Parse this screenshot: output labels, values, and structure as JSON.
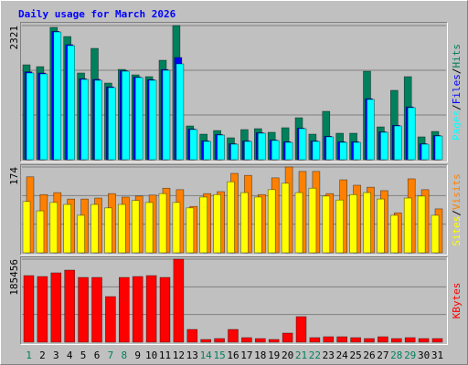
{
  "chart_data": [
    {
      "type": "bar",
      "title": "Daily usage for March 2026",
      "title_color": "#0000ff",
      "legend_separator": "/",
      "ylim": [
        0,
        2321
      ],
      "yticks": [
        2321
      ],
      "grid": true,
      "series": [
        {
          "name": "Hits",
          "color": "#00805c",
          "values": [
            1642,
            1610,
            2290,
            2131,
            1500,
            1926,
            1326,
            1563,
            1468,
            1437,
            1721,
            2321,
            584,
            442,
            505,
            379,
            521,
            537,
            474,
            553,
            726,
            442,
            837,
            458,
            458,
            1531,
            568,
            1200,
            1437,
            395,
            489
          ]
        },
        {
          "name": "Files",
          "color": "#0000ff",
          "values": [
            1520,
            1500,
            2220,
            1990,
            1400,
            1390,
            1260,
            1540,
            1430,
            1385,
            1560,
            1768,
            530,
            325,
            435,
            276,
            325,
            466,
            340,
            310,
            545,
            325,
            405,
            310,
            310,
            1055,
            482,
            595,
            912,
            276,
            418
          ]
        },
        {
          "name": "Pages",
          "color": "#00ffff",
          "values": [
            1500,
            1484,
            2210,
            1974,
            1389,
            1374,
            1247,
            1531,
            1421,
            1374,
            1547,
            1658,
            521,
            316,
            426,
            268,
            316,
            458,
            332,
            300,
            537,
            316,
            395,
            300,
            300,
            1042,
            474,
            584,
            900,
            268,
            410
          ]
        }
      ]
    },
    {
      "type": "bar",
      "legend_separator": "/",
      "ylim": [
        0,
        174
      ],
      "yticks": [
        174
      ],
      "grid": true,
      "series": [
        {
          "name": "Visits",
          "color": "#ff8000",
          "values": [
            154,
            118,
            122,
            109,
            109,
            111,
            120,
            113,
            115,
            117,
            131,
            128,
            94,
            120,
            124,
            161,
            157,
            118,
            152,
            174,
            165,
            165,
            120,
            148,
            137,
            133,
            126,
            81,
            150,
            128,
            89
          ]
        },
        {
          "name": "Sites",
          "color": "#ffff00",
          "values": [
            104,
            85,
            102,
            98,
            76,
            98,
            91,
            98,
            106,
            102,
            120,
            102,
            91,
            113,
            118,
            144,
            122,
            113,
            128,
            141,
            122,
            131,
            115,
            107,
            118,
            122,
            109,
            76,
            111,
            115,
            76
          ]
        }
      ]
    },
    {
      "type": "bar",
      "ylim": [
        0,
        185456
      ],
      "yticks": [
        185456
      ],
      "grid": true,
      "categories": [
        "1",
        "2",
        "3",
        "4",
        "5",
        "6",
        "7",
        "8",
        "9",
        "10",
        "11",
        "12",
        "13",
        "14",
        "15",
        "16",
        "17",
        "18",
        "19",
        "20",
        "21",
        "22",
        "23",
        "24",
        "25",
        "26",
        "27",
        "28",
        "29",
        "30",
        "31"
      ],
      "x_label_colors": [
        "#00805c",
        "#000000",
        "#000000",
        "#000000",
        "#000000",
        "#000000",
        "#00805c",
        "#00805c",
        "#000000",
        "#000000",
        "#000000",
        "#000000",
        "#000000",
        "#00805c",
        "#00805c",
        "#000000",
        "#000000",
        "#000000",
        "#000000",
        "#000000",
        "#00805c",
        "#00805c",
        "#000000",
        "#000000",
        "#000000",
        "#000000",
        "#000000",
        "#00805c",
        "#00805c",
        "#000000",
        "#000000"
      ],
      "series": [
        {
          "name": "KBytes",
          "color": "#ff0000",
          "values": [
            148770,
            146731,
            154886,
            161000,
            144693,
            144693,
            101900,
            144693,
            146731,
            148770,
            144693,
            185456,
            28532,
            6114,
            8152,
            28532,
            10190,
            8152,
            6114,
            20380,
            57063,
            10190,
            12228,
            12228,
            10190,
            8152,
            12228,
            8152,
            10190,
            8152,
            8152
          ]
        }
      ]
    }
  ]
}
